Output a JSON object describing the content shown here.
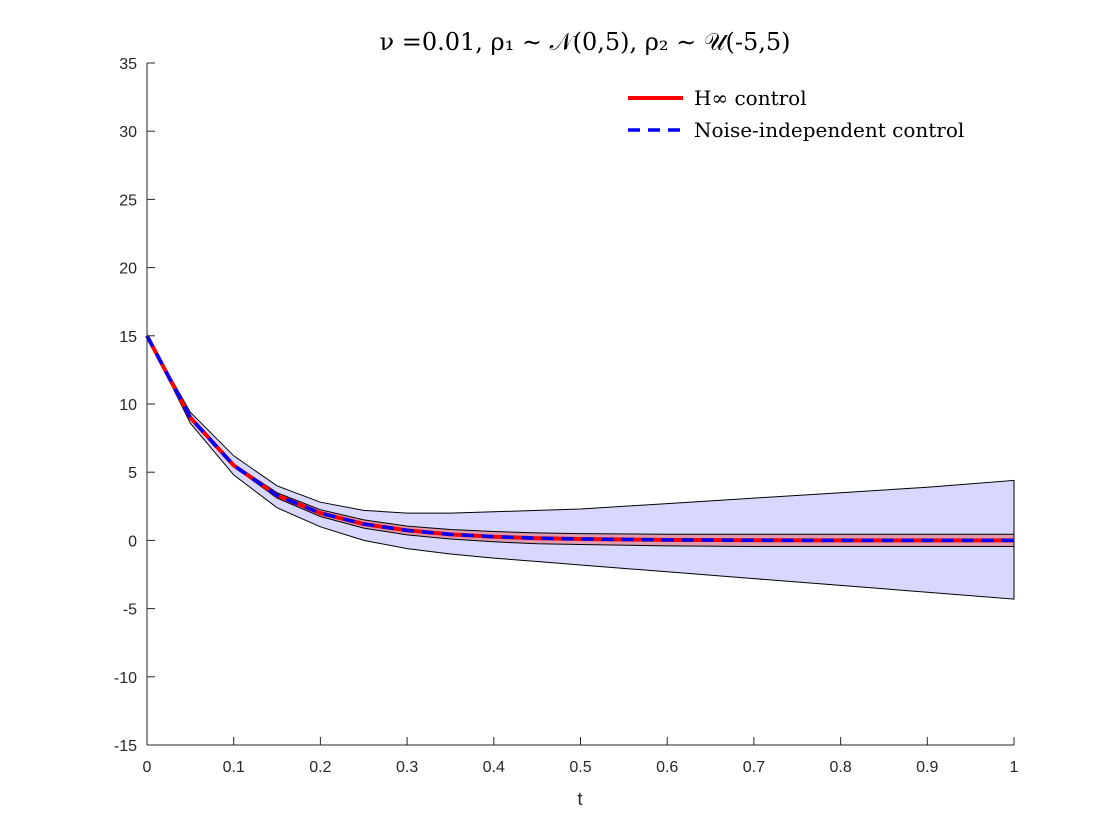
{
  "chart_data": {
    "type": "line",
    "title": "ν =0.01, ρ₁ ∼ 𝒩(0,5), ρ₂ ∼ 𝒰(-5,5)",
    "xlabel": "t",
    "ylabel": "",
    "xlim": [
      0,
      1
    ],
    "ylim": [
      -15,
      35
    ],
    "x_ticks": [
      "0",
      "0.1",
      "0.2",
      "0.3",
      "0.4",
      "0.5",
      "0.6",
      "0.7",
      "0.8",
      "0.9",
      "1"
    ],
    "y_ticks": [
      "-15",
      "-10",
      "-5",
      "0",
      "5",
      "10",
      "15",
      "20",
      "25",
      "30",
      "35"
    ],
    "grid": false,
    "legend_position": "top-right",
    "x": [
      0,
      0.05,
      0.1,
      0.15,
      0.2,
      0.25,
      0.3,
      0.35,
      0.4,
      0.45,
      0.5,
      0.6,
      0.7,
      0.8,
      0.9,
      1.0
    ],
    "series": [
      {
        "name": "H∞ control",
        "color": "#ff0000",
        "style": "solid",
        "values": [
          15,
          9.0,
          5.5,
          3.3,
          2.0,
          1.2,
          0.73,
          0.44,
          0.27,
          0.16,
          0.1,
          0.04,
          0.01,
          0.0,
          0.0,
          0.0
        ]
      },
      {
        "name": "Noise-independent control",
        "color": "#0000ff",
        "style": "dashed",
        "values": [
          15,
          9.0,
          5.5,
          3.3,
          2.0,
          1.2,
          0.73,
          0.44,
          0.27,
          0.16,
          0.1,
          0.04,
          0.01,
          0.0,
          0.0,
          0.0
        ]
      }
    ],
    "bands": [
      {
        "color": "#d8d8ff",
        "upper": [
          15,
          9.4,
          6.2,
          4.0,
          2.8,
          2.2,
          2.0,
          2.0,
          2.1,
          2.2,
          2.3,
          2.7,
          3.1,
          3.5,
          3.9,
          4.4
        ],
        "lower": [
          15,
          8.6,
          4.8,
          2.4,
          1.0,
          0.0,
          -0.6,
          -1.0,
          -1.3,
          -1.55,
          -1.8,
          -2.3,
          -2.8,
          -3.3,
          -3.8,
          -4.3
        ]
      },
      {
        "color": "#e09ab0",
        "upper": [
          15,
          9.05,
          5.6,
          3.5,
          2.25,
          1.5,
          1.05,
          0.8,
          0.65,
          0.55,
          0.5,
          0.45,
          0.45,
          0.45,
          0.45,
          0.45
        ],
        "lower": [
          15,
          8.95,
          5.4,
          3.1,
          1.75,
          0.9,
          0.4,
          0.1,
          -0.1,
          -0.25,
          -0.3,
          -0.4,
          -0.45,
          -0.45,
          -0.45,
          -0.45
        ]
      }
    ]
  }
}
